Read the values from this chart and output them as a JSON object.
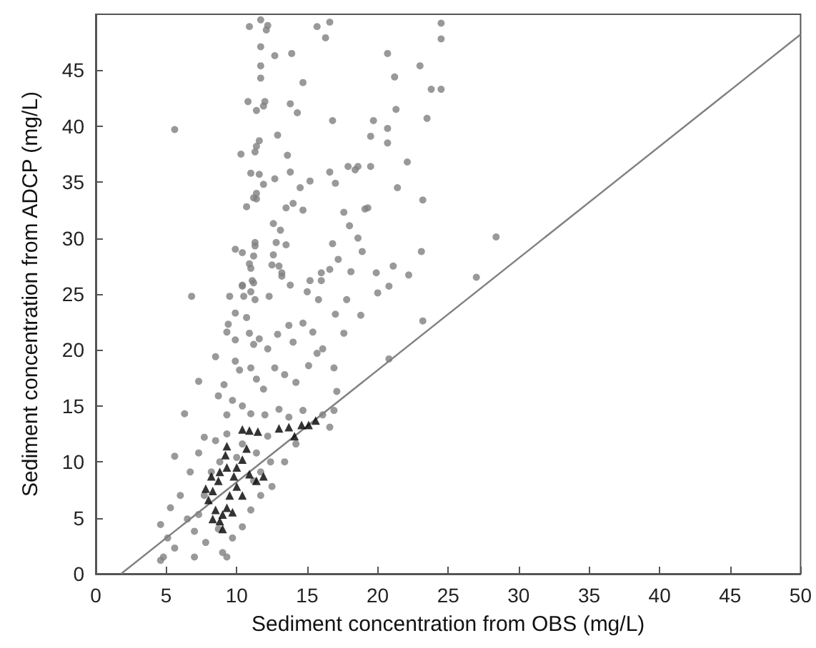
{
  "chart_data": {
    "type": "scatter",
    "xlabel": "Sediment concentration from OBS (mg/L)",
    "ylabel": "Sediment concentration from ADCP (mg/L)",
    "xlim": [
      0,
      50
    ],
    "xticks": [
      0,
      5,
      10,
      15,
      20,
      25,
      30,
      35,
      40,
      45,
      50
    ],
    "ylim": [
      0,
      50
    ],
    "yticks": [
      0,
      5,
      10,
      15,
      20,
      25,
      30,
      35,
      40,
      45
    ],
    "grid": false,
    "series": [
      {
        "marker": "circle",
        "color": "#808080",
        "x": [
          24.5,
          24.5,
          20.7,
          23.0,
          21.2,
          23.8,
          24.5,
          21.3,
          16.8,
          19.7,
          23.5,
          20.7,
          19.5,
          20.7,
          22.1,
          17.9,
          18.6,
          18.4,
          19.5,
          16.6,
          17.0,
          21.4,
          23.2,
          17.6,
          18.0,
          19.1,
          19.3,
          18.6,
          28.4,
          16.8,
          18.9,
          23.1,
          17.2,
          21.1,
          16.6,
          18.1,
          19.9,
          22.2,
          27.0,
          20.8,
          20.0,
          17.8,
          17.0,
          18.8,
          23.2,
          17.6,
          20.8,
          16.9,
          17.1,
          16.9,
          16.6,
          5.6,
          10.9,
          11.7,
          12.2,
          12.1,
          15.7,
          16.6,
          16.3,
          11.7,
          12.7,
          13.9,
          11.7,
          11.7,
          14.7,
          10.8,
          12.0,
          11.9,
          11.4,
          13.8,
          14.3,
          12.9,
          11.6,
          11.4,
          11.3,
          10.3,
          13.6,
          11.0,
          11.6,
          13.8,
          12.7,
          11.9,
          15.2,
          14.5,
          11.4,
          11.2,
          11.4,
          10.7,
          14.0,
          13.5,
          14.7,
          12.6,
          13.1,
          9.9,
          10.4,
          11.3,
          11.3,
          11.2,
          10.9,
          11.0,
          11.2,
          10.4,
          12.8,
          12.6,
          13.5,
          12.5,
          13.0,
          13.2,
          16.0,
          15.2,
          6.8,
          9.5,
          10.4,
          10.5,
          11.1,
          11.0,
          11.3,
          12.3,
          13.2,
          13.8,
          15.0,
          15.8,
          16.0,
          9.9,
          10.7,
          9.4,
          9.3,
          9.9,
          10.9,
          11.6,
          12.2,
          11.2,
          12.9,
          13.7,
          14.0,
          14.7,
          15.4,
          16.1,
          8.5,
          7.3,
          6.3,
          5.6,
          9.9,
          10.2,
          11.0,
          11.4,
          11.9,
          12.7,
          13.4,
          14.2,
          15.1,
          15.7,
          9.1,
          8.7,
          9.7,
          10.4,
          9.3,
          11.0,
          12.0,
          13.0,
          13.7,
          14.7,
          16.1,
          7.7,
          8.5,
          9.3,
          10.4,
          11.4,
          12.2,
          13.4,
          14.2,
          7.3,
          6.7,
          6.0,
          5.3,
          4.6,
          5.1,
          4.8,
          5.6,
          6.5,
          7.0,
          7.7,
          7.8,
          8.7,
          9.0,
          9.7,
          10.4,
          11.0,
          11.7,
          12.5,
          4.6,
          7.0,
          9.3,
          7.3,
          11.7,
          12.4,
          11.2,
          8.2,
          8.8,
          10.0
        ],
        "values": [
          49.2,
          47.8,
          46.5,
          45.4,
          44.4,
          43.3,
          43.3,
          41.5,
          40.5,
          40.5,
          40.7,
          39.8,
          39.1,
          38.5,
          36.8,
          36.4,
          36.4,
          36.1,
          36.4,
          35.9,
          34.9,
          34.5,
          33.4,
          32.3,
          31.1,
          32.6,
          32.7,
          30.0,
          30.1,
          29.5,
          28.8,
          28.8,
          28.1,
          27.5,
          27.2,
          27.0,
          26.9,
          26.7,
          26.5,
          25.7,
          25.1,
          24.5,
          23.2,
          23.1,
          22.6,
          21.5,
          19.2,
          18.4,
          16.3,
          14.6,
          13.1,
          39.7,
          48.9,
          49.5,
          49.0,
          48.6,
          48.9,
          49.3,
          47.9,
          47.1,
          46.3,
          46.5,
          45.4,
          44.3,
          43.9,
          42.2,
          42.2,
          41.8,
          41.4,
          42.0,
          41.2,
          39.2,
          38.7,
          38.2,
          37.7,
          37.5,
          37.4,
          35.8,
          35.7,
          35.9,
          35.3,
          34.8,
          35.1,
          34.5,
          34.0,
          33.6,
          33.5,
          32.8,
          33.1,
          32.7,
          32.5,
          31.3,
          30.7,
          29.0,
          28.7,
          29.6,
          29.3,
          28.4,
          27.7,
          27.3,
          26.0,
          25.8,
          29.6,
          28.5,
          29.4,
          27.6,
          27.5,
          26.9,
          26.9,
          26.2,
          24.8,
          24.8,
          25.7,
          24.8,
          26.2,
          25.2,
          24.5,
          24.8,
          26.6,
          25.8,
          25.2,
          24.5,
          26.2,
          23.3,
          22.9,
          22.3,
          21.6,
          20.9,
          21.5,
          21.0,
          20.1,
          20.5,
          21.4,
          22.2,
          20.7,
          22.4,
          21.6,
          20.1,
          19.4,
          17.2,
          14.3,
          10.5,
          19.0,
          18.2,
          18.4,
          17.4,
          16.5,
          18.4,
          17.8,
          17.1,
          18.6,
          19.7,
          16.9,
          15.9,
          15.5,
          15.0,
          14.2,
          14.3,
          14.2,
          14.7,
          14.0,
          14.6,
          14.2,
          12.2,
          11.9,
          12.5,
          11.6,
          10.8,
          12.3,
          10.0,
          11.6,
          10.8,
          9.1,
          7.0,
          5.9,
          4.4,
          3.2,
          1.5,
          2.3,
          4.9,
          3.8,
          7.0,
          2.8,
          4.0,
          1.9,
          3.2,
          4.2,
          5.7,
          7.0,
          7.8,
          1.2,
          1.5,
          1.5,
          5.3,
          9.1,
          10.0,
          8.3,
          9.1,
          10.0,
          10.4
        ]
      },
      {
        "marker": "triangle",
        "color": "#000000",
        "x": [
          9.3,
          8.8,
          8.2,
          8.3,
          8.0,
          8.5,
          9.0,
          9.3,
          8.3,
          8.8,
          9.5,
          10.0,
          10.4,
          9.8,
          10.4,
          10.7,
          10.9,
          11.4,
          11.9,
          10.4,
          10.9,
          11.5,
          13.0,
          13.7,
          14.6,
          15.1,
          15.6,
          14.1,
          9.2,
          8.7,
          7.8,
          9.7,
          9.0,
          9.3,
          10.0
        ],
        "values": [
          9.5,
          9.1,
          8.7,
          7.4,
          6.6,
          5.7,
          5.3,
          5.9,
          4.9,
          4.7,
          7.0,
          7.8,
          7.0,
          8.7,
          10.2,
          11.2,
          8.9,
          8.3,
          8.7,
          12.9,
          12.8,
          12.7,
          13.0,
          13.1,
          13.3,
          13.3,
          13.7,
          12.3,
          10.6,
          8.3,
          7.6,
          5.5,
          4.0,
          11.4,
          9.5
        ]
      },
      {
        "type": "line",
        "marker": "none",
        "line_style": "solid",
        "color": "#808080",
        "x": [
          1.8,
          50
        ],
        "values": [
          0,
          48.2
        ]
      }
    ]
  }
}
